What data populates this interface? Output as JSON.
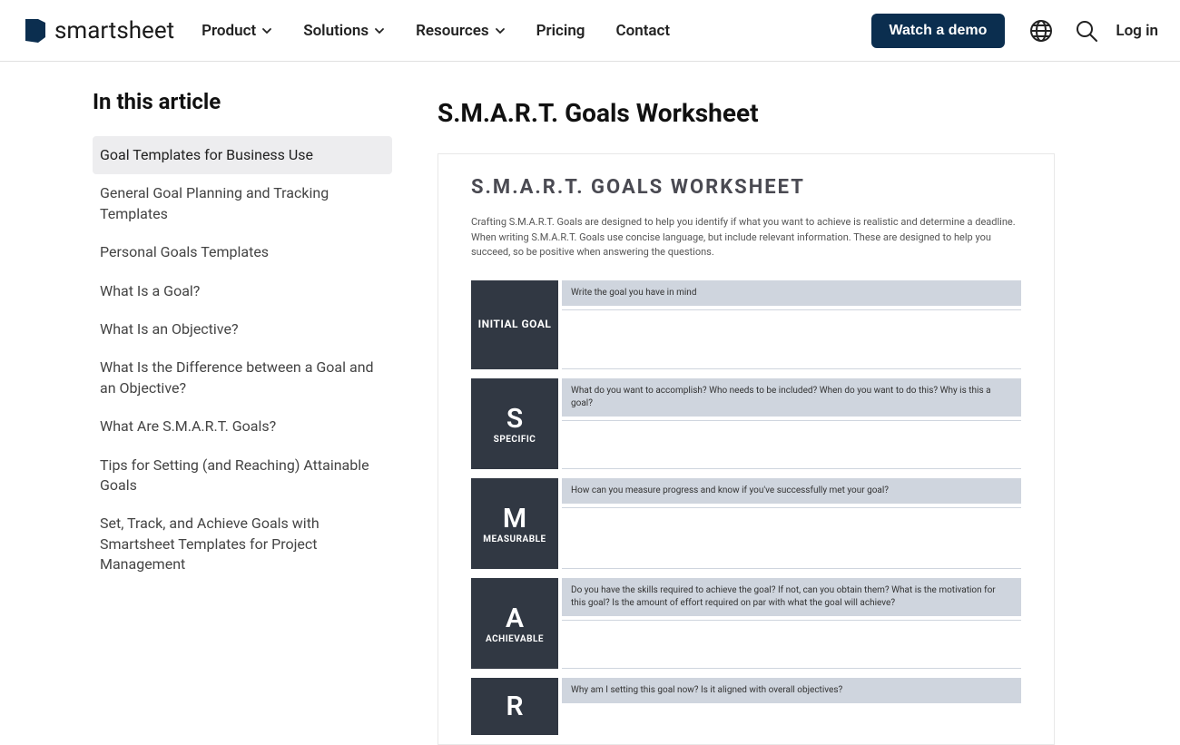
{
  "brand": {
    "name": "smartsheet"
  },
  "nav": {
    "items": [
      {
        "label": "Product",
        "has_dropdown": true
      },
      {
        "label": "Solutions",
        "has_dropdown": true
      },
      {
        "label": "Resources",
        "has_dropdown": true
      },
      {
        "label": "Pricing",
        "has_dropdown": false
      },
      {
        "label": "Contact",
        "has_dropdown": false
      }
    ],
    "cta_label": "Watch a demo",
    "login_label": "Log in"
  },
  "sidebar": {
    "title": "In this article",
    "items": [
      "Goal Templates for Business Use",
      "General Goal Planning and Tracking Templates",
      "Personal Goals Templates",
      "What Is a Goal?",
      "What Is an Objective?",
      "What Is the Difference between a Goal and an Objective?",
      "What Are S.M.A.R.T. Goals?",
      "Tips for Setting (and Reaching) Attainable Goals",
      "Set, Track, and Achieve Goals with Smartsheet Templates for Project Management"
    ],
    "active_index": 0
  },
  "content": {
    "title": "S.M.A.R.T. Goals Worksheet"
  },
  "worksheet": {
    "title": "S.M.A.R.T. GOALS WORKSHEET",
    "intro": "Crafting S.M.A.R.T. Goals are designed to help you identify if what you want to achieve is realistic and determine a deadline. When writing S.M.A.R.T. Goals use concise language, but include relevant information. These are designed to help you succeed, so be positive when answering the questions.",
    "rows": [
      {
        "letter": "",
        "label": "INITIAL GOAL",
        "prompt": "Write the goal you have in mind",
        "single": true,
        "height": 98
      },
      {
        "letter": "S",
        "label": "SPECIFIC",
        "prompt": "What do you want to accomplish? Who needs to be included? When do you want to do this? Why is this a goal?",
        "single": false,
        "height": 100
      },
      {
        "letter": "M",
        "label": "MEASURABLE",
        "prompt": "How can you measure progress and know if you've successfully met your goal?",
        "single": false,
        "height": 100
      },
      {
        "letter": "A",
        "label": "ACHIEVABLE",
        "prompt": "Do you have the skills required to achieve the goal? If not, can you obtain them? What is the motivation for this goal? Is the amount of effort required on par with what the goal will achieve?",
        "single": false,
        "height": 100
      },
      {
        "letter": "R",
        "label": "",
        "prompt": "Why am I setting this goal now? Is it aligned with overall objectives?",
        "single": false,
        "height": 40,
        "partial": true
      }
    ],
    "colors": {
      "left_bg": "#313843",
      "prompt_bg": "#cfd5de",
      "title_color": "#4a4a52"
    }
  }
}
